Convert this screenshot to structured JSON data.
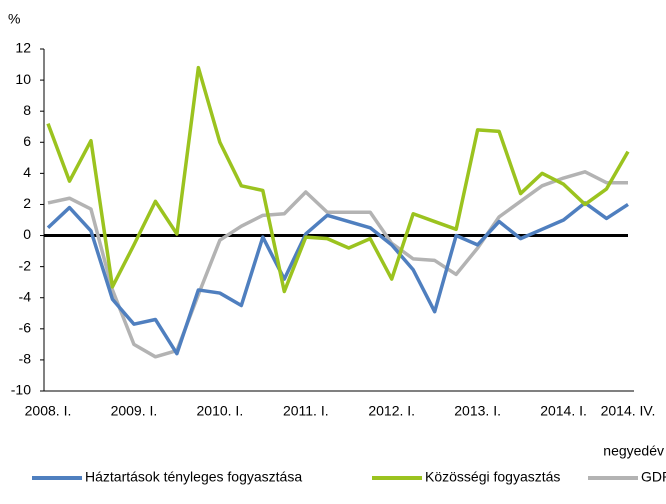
{
  "chart_data": {
    "type": "line",
    "y_axis_label": "%",
    "x_axis_label": "negyedév",
    "categories": [
      "2008. I.",
      null,
      null,
      null,
      "2009. I.",
      null,
      null,
      null,
      "2010. I.",
      null,
      null,
      null,
      "2011. I.",
      null,
      null,
      null,
      "2012. I.",
      null,
      null,
      null,
      "2013. I.",
      null,
      null,
      null,
      "2014. I.",
      null,
      null,
      "2014. IV."
    ],
    "series": [
      {
        "name": "Háztartások tényleges fogyasztása",
        "color": "#4f7fbf",
        "values": [
          0.5,
          1.8,
          0.3,
          -4.1,
          -5.7,
          -5.4,
          -7.6,
          -3.5,
          -3.7,
          -4.5,
          -0.1,
          -2.8,
          0.1,
          1.3,
          0.9,
          0.5,
          -0.6,
          -2.2,
          -4.9,
          0,
          -0.6,
          0.9,
          -0.2,
          0.4,
          1.0,
          2.1,
          1.1,
          2.0
        ]
      },
      {
        "name": "Közösségi fogyasztás",
        "color": "#9bc31f",
        "values": [
          7.2,
          3.5,
          6.1,
          -3.3,
          -0.6,
          2.2,
          0.1,
          10.8,
          6.0,
          3.2,
          2.9,
          -3.6,
          -0.1,
          -0.2,
          -0.8,
          -0.2,
          -2.8,
          1.4,
          0.9,
          0.4,
          6.8,
          6.7,
          2.7,
          4.0,
          3.3,
          2.0,
          3.0,
          5.4
        ]
      },
      {
        "name": "GDP",
        "color": "#b3b3b3",
        "values": [
          2.1,
          2.4,
          1.7,
          -3.5,
          -7.0,
          -7.8,
          -7.4,
          -3.8,
          -0.3,
          0.6,
          1.3,
          1.4,
          2.8,
          1.5,
          1.5,
          1.5,
          -0.5,
          -1.5,
          -1.6,
          -2.5,
          -0.8,
          1.2,
          2.2,
          3.2,
          3.7,
          4.1,
          3.4,
          3.4
        ]
      }
    ],
    "ylim": [
      -10,
      12
    ],
    "yticks": [
      -10,
      -8,
      -6,
      -4,
      -2,
      0,
      2,
      4,
      6,
      8,
      10,
      12
    ],
    "grid": false,
    "legend": "bottom"
  }
}
